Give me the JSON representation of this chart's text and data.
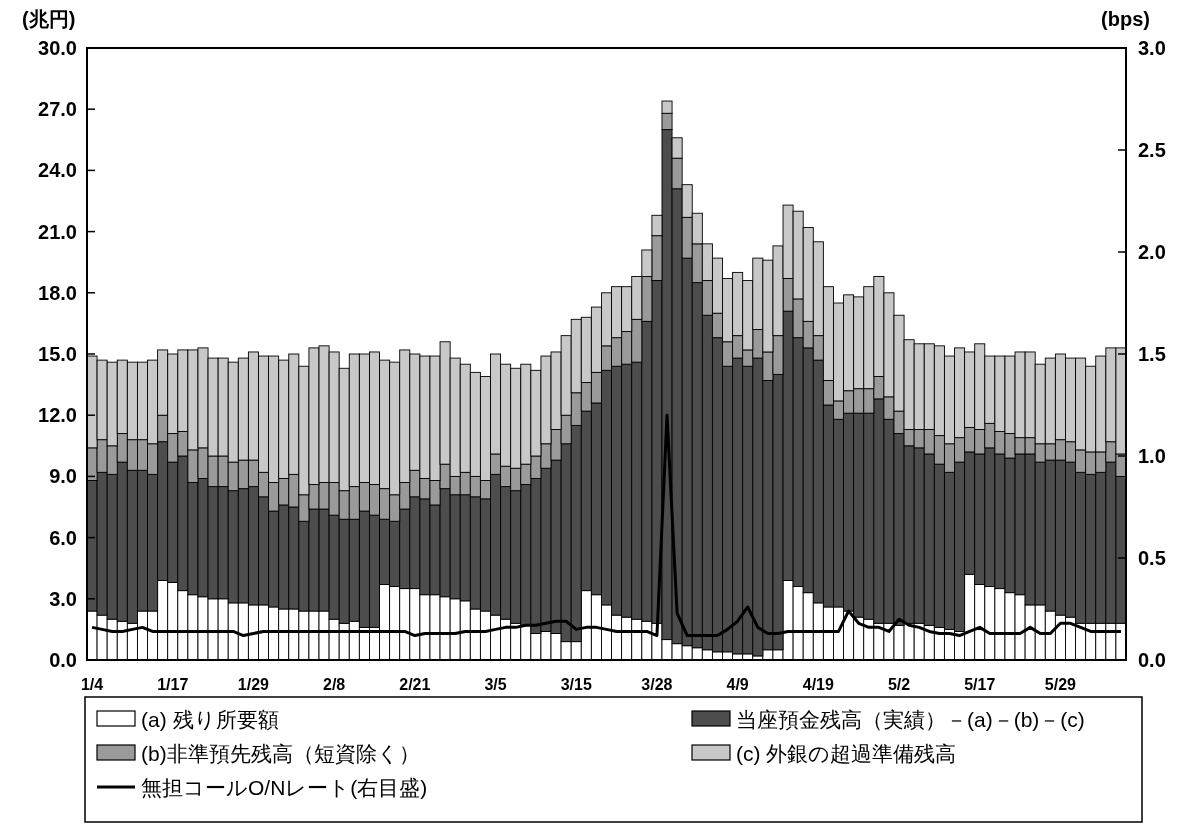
{
  "chart_data": {
    "type": "bar",
    "stacked": true,
    "legend": "bottom",
    "ylabel": "(兆円)",
    "y2label": "(bps)",
    "ylim": [
      0,
      30
    ],
    "yticks": [
      {
        "value": 0,
        "label": "0.0"
      },
      {
        "value": 3,
        "label": "3.0"
      },
      {
        "value": 6,
        "label": "6.0"
      },
      {
        "value": 9,
        "label": "9.0"
      },
      {
        "value": 12,
        "label": "12.0"
      },
      {
        "value": 15,
        "label": "15.0"
      },
      {
        "value": 18,
        "label": "18.0"
      },
      {
        "value": 21,
        "label": "21.0"
      },
      {
        "value": 24,
        "label": "24.0"
      },
      {
        "value": 27,
        "label": "27.0"
      },
      {
        "value": 30,
        "label": "30.0"
      }
    ],
    "y2lim": [
      0,
      3
    ],
    "y2ticks": [
      {
        "value": 0,
        "label": "0.0"
      },
      {
        "value": 0.5,
        "label": "0.5"
      },
      {
        "value": 1,
        "label": "1.0"
      },
      {
        "value": 1.5,
        "label": "1.5"
      },
      {
        "value": 2,
        "label": "2.0"
      },
      {
        "value": 2.5,
        "label": "2.5"
      },
      {
        "value": 3,
        "label": "3.0"
      }
    ],
    "categories": [
      "1/4",
      null,
      null,
      null,
      null,
      null,
      null,
      null,
      "1/17",
      null,
      null,
      null,
      null,
      null,
      null,
      null,
      "1/29",
      null,
      null,
      null,
      null,
      null,
      null,
      null,
      "2/8",
      null,
      null,
      null,
      null,
      null,
      null,
      null,
      "2/21",
      null,
      null,
      null,
      null,
      null,
      null,
      null,
      "3/5",
      null,
      null,
      null,
      null,
      null,
      null,
      null,
      "3/15",
      null,
      null,
      null,
      null,
      null,
      null,
      null,
      "3/28",
      null,
      null,
      null,
      null,
      null,
      null,
      null,
      "4/9",
      null,
      null,
      null,
      null,
      null,
      null,
      null,
      "4/19",
      null,
      null,
      null,
      null,
      null,
      null,
      null,
      "5/2",
      null,
      null,
      null,
      null,
      null,
      null,
      null,
      "5/17",
      null,
      null,
      null,
      null,
      null,
      null,
      null,
      "5/29",
      null,
      null,
      null,
      null,
      null,
      null
    ],
    "series": [
      {
        "name": "(a)  残り所要額",
        "color": "#ffffff",
        "values": [
          2.4,
          2.2,
          2.0,
          1.9,
          1.8,
          2.4,
          2.4,
          3.9,
          3.8,
          3.4,
          3.2,
          3.1,
          3.0,
          3.0,
          2.8,
          2.8,
          2.7,
          2.7,
          2.6,
          2.5,
          2.5,
          2.4,
          2.4,
          2.4,
          2.0,
          1.8,
          1.9,
          1.6,
          1.6,
          3.7,
          3.6,
          3.5,
          3.5,
          3.2,
          3.2,
          3.1,
          3.0,
          2.9,
          2.5,
          2.4,
          2.2,
          2.0,
          1.8,
          1.7,
          1.3,
          1.4,
          1.3,
          0.9,
          0.9,
          3.4,
          3.2,
          2.7,
          2.2,
          2.1,
          2.0,
          1.9,
          1.8,
          1.0,
          0.8,
          0.7,
          0.6,
          0.5,
          0.4,
          0.4,
          0.3,
          0.3,
          0.2,
          0.5,
          0.5,
          3.9,
          3.6,
          3.3,
          2.8,
          2.6,
          2.6,
          2.4,
          2.1,
          2.0,
          1.8,
          1.8,
          1.7,
          1.8,
          1.8,
          1.7,
          1.6,
          1.5,
          1.4,
          4.2,
          3.7,
          3.6,
          3.5,
          3.3,
          3.2,
          2.7,
          2.7,
          2.4,
          2.2,
          2.1,
          1.8,
          1.8,
          1.8,
          1.8,
          1.8
        ]
      },
      {
        "name": "当座預金残高（実績）－(a)－(b)－(c)",
        "color": "#4d4d4d",
        "values": [
          6.4,
          7.0,
          7.1,
          7.8,
          7.5,
          6.9,
          6.7,
          6.8,
          5.9,
          6.6,
          5.5,
          5.8,
          5.5,
          5.5,
          5.5,
          5.6,
          5.8,
          5.3,
          4.7,
          5.1,
          5.0,
          4.4,
          5.0,
          5.0,
          5.1,
          5.1,
          5.0,
          5.7,
          5.5,
          3.2,
          3.2,
          3.9,
          4.5,
          4.7,
          4.4,
          5.3,
          5.1,
          5.2,
          5.5,
          5.5,
          6.9,
          6.5,
          6.5,
          6.9,
          7.6,
          8.0,
          8.5,
          9.7,
          10.6,
          8.8,
          9.4,
          11.5,
          12.2,
          12.4,
          12.6,
          14.7,
          16.8,
          25.0,
          22.3,
          19.0,
          17.9,
          16.4,
          15.4,
          14.0,
          14.5,
          14.1,
          14.6,
          13.2,
          13.5,
          13.2,
          12.2,
          12.0,
          11.9,
          9.9,
          9.2,
          9.7,
          10.0,
          10.1,
          11.0,
          10.0,
          9.4,
          8.7,
          8.6,
          8.4,
          8.0,
          7.7,
          8.3,
          6.0,
          6.4,
          6.8,
          6.6,
          6.6,
          6.9,
          7.4,
          7.0,
          7.4,
          7.6,
          7.6,
          7.4,
          7.3,
          7.4,
          7.9,
          7.2
        ]
      },
      {
        "name": "(b)非準預先残高（短資除く）",
        "color": "#9a9a9a",
        "values": [
          1.6,
          1.6,
          1.4,
          1.4,
          1.5,
          1.5,
          1.5,
          1.3,
          1.4,
          1.2,
          1.6,
          1.5,
          1.5,
          1.5,
          1.4,
          1.4,
          1.3,
          1.2,
          1.4,
          1.3,
          1.6,
          1.3,
          1.2,
          1.3,
          1.6,
          1.4,
          1.6,
          1.4,
          1.5,
          1.5,
          1.3,
          1.3,
          1.3,
          1.0,
          1.2,
          1.2,
          0.9,
          1.1,
          1.0,
          0.9,
          1.0,
          1.0,
          1.1,
          1.0,
          1.1,
          1.2,
          1.5,
          1.4,
          1.6,
          1.4,
          1.5,
          1.2,
          1.4,
          1.6,
          2.1,
          2.2,
          2.2,
          0.8,
          1.5,
          2.0,
          1.9,
          1.7,
          1.2,
          1.2,
          1.1,
          0.8,
          1.4,
          1.4,
          1.9,
          1.6,
          1.9,
          1.3,
          1.2,
          1.2,
          0.9,
          1.1,
          1.2,
          1.2,
          1.1,
          1.1,
          1.1,
          0.8,
          0.9,
          1.2,
          1.4,
          1.4,
          1.2,
          1.2,
          1.2,
          1.2,
          1.1,
          1.2,
          0.8,
          0.8,
          0.9,
          0.8,
          1.0,
          1.0,
          1.1,
          1.1,
          1.0,
          1.0,
          1.1
        ]
      },
      {
        "name": "(c) 外銀の超過準備残高",
        "color": "#c8c8c8",
        "values": [
          4.5,
          3.9,
          4.1,
          3.6,
          3.8,
          3.8,
          4.1,
          3.2,
          3.9,
          4.0,
          4.9,
          4.9,
          4.8,
          4.8,
          4.9,
          5.0,
          5.3,
          5.7,
          6.2,
          5.8,
          5.9,
          6.3,
          6.7,
          6.7,
          6.4,
          6.0,
          6.5,
          6.3,
          6.5,
          6.3,
          6.5,
          6.5,
          5.7,
          6.0,
          6.1,
          6.0,
          5.8,
          5.3,
          5.1,
          5.1,
          4.9,
          5.0,
          4.9,
          4.9,
          4.2,
          4.3,
          3.8,
          3.9,
          3.6,
          3.2,
          3.2,
          2.6,
          2.5,
          2.2,
          2.1,
          1.3,
          1.0,
          0.6,
          1.0,
          1.6,
          1.5,
          1.8,
          2.7,
          3.1,
          3.1,
          3.4,
          3.5,
          4.5,
          4.4,
          3.6,
          4.3,
          4.6,
          4.6,
          4.6,
          4.8,
          4.7,
          4.5,
          5.0,
          4.9,
          5.1,
          4.7,
          4.4,
          4.2,
          4.2,
          4.4,
          4.3,
          4.4,
          3.7,
          4.2,
          3.3,
          3.7,
          3.8,
          4.2,
          4.2,
          3.9,
          4.2,
          4.2,
          4.1,
          4.5,
          4.2,
          4.7,
          4.6,
          5.2
        ]
      },
      {
        "name": "無担コールO/Nレート(右目盛)",
        "type": "line",
        "axis": "y2",
        "color": "#000000",
        "values": [
          0.16,
          0.15,
          0.14,
          0.14,
          0.15,
          0.16,
          0.14,
          0.14,
          0.14,
          0.14,
          0.14,
          0.14,
          0.14,
          0.14,
          0.14,
          0.12,
          0.13,
          0.14,
          0.14,
          0.14,
          0.14,
          0.14,
          0.14,
          0.14,
          0.14,
          0.14,
          0.14,
          0.14,
          0.14,
          0.14,
          0.14,
          0.14,
          0.12,
          0.13,
          0.13,
          0.13,
          0.13,
          0.14,
          0.14,
          0.14,
          0.15,
          0.16,
          0.16,
          0.17,
          0.17,
          0.18,
          0.19,
          0.19,
          0.15,
          0.16,
          0.16,
          0.15,
          0.14,
          0.14,
          0.14,
          0.14,
          0.12,
          1.2,
          0.23,
          0.12,
          0.12,
          0.12,
          0.12,
          0.15,
          0.19,
          0.26,
          0.16,
          0.13,
          0.13,
          0.14,
          0.14,
          0.14,
          0.14,
          0.14,
          0.14,
          0.24,
          0.18,
          0.16,
          0.16,
          0.14,
          0.2,
          0.17,
          0.16,
          0.14,
          0.13,
          0.13,
          0.12,
          0.14,
          0.16,
          0.13,
          0.13,
          0.13,
          0.13,
          0.16,
          0.13,
          0.13,
          0.18,
          0.18,
          0.16,
          0.14,
          0.14,
          0.14,
          0.14
        ]
      }
    ]
  }
}
